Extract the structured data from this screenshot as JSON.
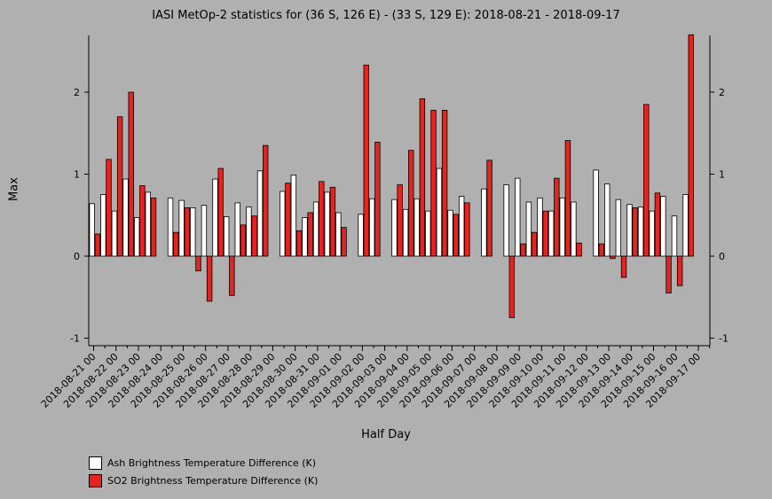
{
  "chart_data": {
    "type": "bar",
    "title": "IASI MetOp-2 statistics for (36 S, 126 E) - (33 S, 129 E): 2018-08-21 - 2018-09-17",
    "xlabel": "Half Day",
    "ylabel": "Max",
    "ylim": [
      -1.1,
      2.7
    ],
    "yticks": [
      -1,
      0,
      1,
      2
    ],
    "xticks": [
      "2018-08-21 00",
      "2018-08-22 00",
      "2018-08-23 00",
      "2018-08-24 00",
      "2018-08-25 00",
      "2018-08-26 00",
      "2018-08-27 00",
      "2018-08-28 00",
      "2018-08-29 00",
      "2018-08-30 00",
      "2018-08-31 00",
      "2018-09-01 00",
      "2018-09-02 00",
      "2018-09-03 00",
      "2018-09-04 00",
      "2018-09-05 00",
      "2018-09-06 00",
      "2018-09-07 00",
      "2018-09-08 00",
      "2018-09-09 00",
      "2018-09-10 00",
      "2018-09-11 00",
      "2018-09-12 00",
      "2018-09-13 00",
      "2018-09-14 00",
      "2018-09-15 00",
      "2018-09-16 00",
      "2018-09-17 00"
    ],
    "legend_position": "bottom-left",
    "series": [
      {
        "name": "Ash Brightness Temperature Difference (K)",
        "color": "#ffffff",
        "values": [
          0.64,
          0.75,
          0.55,
          0.94,
          0.47,
          0.78,
          null,
          0.71,
          0.68,
          0.59,
          0.62,
          0.94,
          0.48,
          0.65,
          0.6,
          1.04,
          null,
          0.79,
          0.99,
          0.47,
          0.66,
          0.78,
          0.53,
          null,
          0.51,
          0.7,
          null,
          0.69,
          0.57,
          0.7,
          0.55,
          1.07,
          0.56,
          0.73,
          null,
          0.82,
          null,
          0.87,
          0.95,
          0.66,
          0.71,
          0.55,
          0.71,
          0.66,
          null,
          1.05,
          0.88,
          0.69,
          0.63,
          0.6,
          0.55,
          0.73,
          0.49,
          0.75
        ]
      },
      {
        "name": "SO2 Brightness Temperature Difference (K)",
        "color": "#e8231e",
        "values": [
          0.27,
          1.18,
          1.7,
          2.0,
          0.86,
          0.71,
          null,
          0.29,
          0.59,
          -0.18,
          -0.55,
          1.07,
          -0.48,
          0.38,
          0.49,
          1.35,
          null,
          0.89,
          0.31,
          0.53,
          0.91,
          0.84,
          0.35,
          null,
          2.33,
          1.39,
          null,
          0.87,
          1.29,
          1.92,
          1.78,
          1.78,
          0.51,
          0.65,
          null,
          1.17,
          null,
          -0.75,
          0.15,
          0.29,
          0.55,
          0.95,
          1.41,
          0.16,
          null,
          0.15,
          -0.03,
          -0.26,
          0.59,
          1.85,
          0.77,
          -0.45,
          -0.36,
          2.7
        ]
      }
    ]
  }
}
